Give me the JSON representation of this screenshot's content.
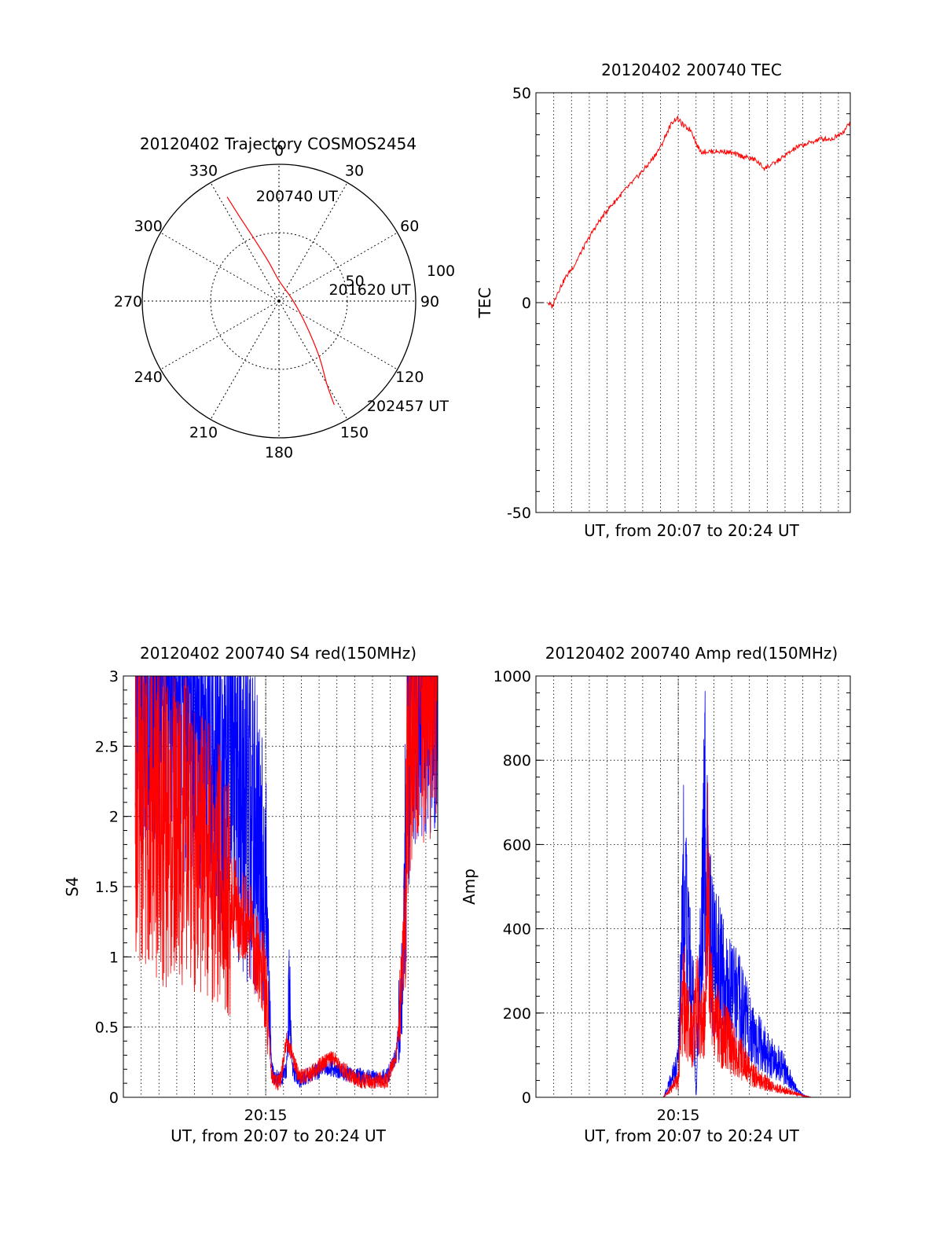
{
  "colors": {
    "red": "#ff0000",
    "blue": "#0000ff",
    "axis": "#000000",
    "grid": "#000000"
  },
  "chart_data": [
    {
      "id": "polar",
      "type": "polar",
      "title": "20120402 Trajectory COSMOS2454",
      "azimuth_labels": [
        "0",
        "30",
        "60",
        "90",
        "120",
        "150",
        "180",
        "210",
        "240",
        "270",
        "300",
        "330"
      ],
      "elevation_rings": [
        {
          "r": 50,
          "label": "50"
        },
        {
          "r": 100,
          "label": "100"
        }
      ],
      "rmax": 100,
      "trajectory": [
        {
          "az": 333.5,
          "r": 85
        },
        {
          "az": 335,
          "r": 68
        },
        {
          "az": 338,
          "r": 50
        },
        {
          "az": 345,
          "r": 30
        },
        {
          "az": 360,
          "r": 15
        },
        {
          "az": 85,
          "r": 10
        },
        {
          "az": 130,
          "r": 25
        },
        {
          "az": 144,
          "r": 50
        },
        {
          "az": 150,
          "r": 70
        },
        {
          "az": 152,
          "r": 86
        }
      ],
      "annotations": [
        {
          "text": "200740 UT",
          "az": 351,
          "r": 78
        },
        {
          "text": "201620 UT",
          "az": 78,
          "r": 42
        },
        {
          "text": "202457 UT",
          "az": 138,
          "r": 103
        }
      ]
    },
    {
      "id": "tec",
      "type": "line",
      "title": "20120402 200740 TEC",
      "xlabel": "UT, from 20:07 to 20:24 UT",
      "ylabel": "TEC",
      "xlim": [
        "20:07:00",
        "20:24:40"
      ],
      "ylim": [
        -50,
        50
      ],
      "yticks": [
        "-50",
        "0",
        "50"
      ],
      "xticks": [],
      "grid": true,
      "series": [
        {
          "color": "red",
          "x": [
            "20:07:40",
            "20:07:55",
            "20:08:10",
            "20:08:40",
            "20:09:10",
            "20:09:40",
            "20:10:20",
            "20:11:00",
            "20:11:50",
            "20:12:30",
            "20:13:20",
            "20:14:00",
            "20:14:25",
            "20:14:40",
            "20:14:55",
            "20:15:20",
            "20:15:45",
            "20:16:00",
            "20:16:15",
            "20:16:30",
            "20:17:00",
            "20:17:40",
            "20:18:30",
            "20:19:20",
            "20:19:50",
            "20:20:20",
            "20:21:00",
            "20:21:40",
            "20:22:20",
            "20:23:00",
            "20:23:40",
            "20:24:20",
            "20:24:40"
          ],
          "y": [
            0,
            -1,
            2,
            6,
            9,
            13,
            18,
            22,
            26,
            29,
            33,
            37,
            41,
            43,
            44,
            42,
            41,
            38,
            36,
            36,
            36,
            36,
            35,
            34,
            32,
            33,
            35,
            37,
            38,
            39,
            39,
            41,
            43
          ]
        }
      ]
    },
    {
      "id": "s4",
      "type": "line",
      "title": "20120402 200740 S4 red(150MHz)",
      "xlabel": "UT, from 20:07 to 20:24 UT",
      "ylabel": "S4",
      "xlim": [
        "20:07:00",
        "20:24:40"
      ],
      "ylim": [
        0,
        3
      ],
      "yticks": [
        "0",
        "0.5",
        "1",
        "1.5",
        "2",
        "2.5",
        "3"
      ],
      "xticks": [
        "20:15"
      ],
      "grid": true,
      "series": [
        {
          "color": "blue",
          "x": [
            "20:07:40",
            "20:08:20",
            "20:09:00",
            "20:09:40",
            "20:10:20",
            "20:11:00",
            "20:11:40",
            "20:12:20",
            "20:13:00",
            "20:13:40",
            "20:14:20",
            "20:15:00",
            "20:15:20",
            "20:15:30",
            "20:15:50",
            "20:16:10",
            "20:16:20",
            "20:16:30",
            "20:16:50",
            "20:17:20",
            "20:17:50",
            "20:18:20",
            "20:18:50",
            "20:19:20",
            "20:19:50",
            "20:20:20",
            "20:20:50",
            "20:21:20",
            "20:21:50",
            "20:22:20",
            "20:22:40",
            "20:22:50",
            "20:23:00",
            "20:23:20",
            "20:23:40",
            "20:24:00",
            "20:24:20",
            "20:24:40"
          ],
          "y": [
            3,
            3,
            3,
            2.9,
            2.8,
            2.7,
            2.6,
            2.4,
            2.3,
            2.1,
            1.9,
            1.6,
            0.2,
            0.15,
            0.12,
            0.2,
            0.8,
            0.2,
            0.12,
            0.15,
            0.18,
            0.22,
            0.2,
            0.18,
            0.15,
            0.15,
            0.14,
            0.13,
            0.15,
            0.3,
            0.8,
            1.6,
            2.5,
            3,
            3,
            3,
            3,
            3
          ]
        },
        {
          "color": "red",
          "x": [
            "20:07:40",
            "20:08:20",
            "20:09:00",
            "20:09:40",
            "20:10:20",
            "20:11:00",
            "20:11:40",
            "20:12:20",
            "20:13:00",
            "20:13:40",
            "20:14:20",
            "20:15:00",
            "20:15:20",
            "20:15:30",
            "20:15:50",
            "20:16:10",
            "20:16:30",
            "20:16:50",
            "20:17:20",
            "20:17:50",
            "20:18:20",
            "20:18:50",
            "20:19:20",
            "20:19:50",
            "20:20:20",
            "20:20:50",
            "20:21:20",
            "20:21:50",
            "20:22:20",
            "20:22:40",
            "20:22:50",
            "20:23:00",
            "20:23:20",
            "20:23:40",
            "20:24:00",
            "20:24:20",
            "20:24:40"
          ],
          "y": [
            2.2,
            2.1,
            2.0,
            1.9,
            1.9,
            1.8,
            1.7,
            1.6,
            1.4,
            1.3,
            1.1,
            0.8,
            0.15,
            0.1,
            0.12,
            0.4,
            0.3,
            0.15,
            0.15,
            0.2,
            0.25,
            0.28,
            0.2,
            0.15,
            0.12,
            0.12,
            0.12,
            0.12,
            0.3,
            0.8,
            1.4,
            2.3,
            3,
            3,
            3,
            3,
            3
          ]
        }
      ]
    },
    {
      "id": "amp",
      "type": "line",
      "title": "20120402 200740 Amp red(150MHz)",
      "xlabel": "UT, from 20:07 to 20:24 UT",
      "ylabel": "Amp",
      "xlim": [
        "20:07:00",
        "20:24:40"
      ],
      "ylim": [
        0,
        1000
      ],
      "yticks": [
        "0",
        "200",
        "400",
        "600",
        "800",
        "1000"
      ],
      "xticks": [
        "20:15"
      ],
      "grid": true,
      "series": [
        {
          "color": "blue",
          "x": [
            "20:07:40",
            "20:14:10",
            "20:15:00",
            "20:15:10",
            "20:15:20",
            "20:15:30",
            "20:15:40",
            "20:15:50",
            "20:16:00",
            "20:16:10",
            "20:16:20",
            "20:16:30",
            "20:16:40",
            "20:16:50",
            "20:17:00",
            "20:17:20",
            "20:17:40",
            "20:18:00",
            "20:18:20",
            "20:18:40",
            "20:19:00",
            "20:19:20",
            "20:19:40",
            "20:20:00",
            "20:20:20",
            "20:20:40",
            "20:21:00",
            "20:21:20",
            "20:21:40",
            "20:22:00",
            "20:22:30",
            "20:24:40"
          ],
          "y": [
            0,
            0,
            100,
            400,
            650,
            450,
            380,
            300,
            0,
            300,
            500,
            800,
            600,
            450,
            400,
            380,
            320,
            300,
            280,
            250,
            200,
            180,
            150,
            130,
            110,
            100,
            80,
            50,
            20,
            5,
            0,
            0
          ]
        },
        {
          "color": "red",
          "x": [
            "20:07:40",
            "20:14:10",
            "20:15:00",
            "20:15:10",
            "20:15:20",
            "20:15:30",
            "20:15:40",
            "20:15:50",
            "20:16:00",
            "20:16:10",
            "20:16:20",
            "20:16:30",
            "20:16:40",
            "20:16:50",
            "20:17:00",
            "20:17:20",
            "20:17:40",
            "20:18:00",
            "20:18:20",
            "20:18:40",
            "20:19:00",
            "20:19:20",
            "20:19:40",
            "20:20:00",
            "20:20:20",
            "20:20:40",
            "20:21:00",
            "20:21:20",
            "20:21:40",
            "20:22:00",
            "20:22:30",
            "20:24:40"
          ],
          "y": [
            0,
            0,
            50,
            250,
            300,
            250,
            180,
            200,
            280,
            260,
            200,
            250,
            650,
            300,
            250,
            200,
            180,
            150,
            120,
            110,
            80,
            60,
            50,
            40,
            30,
            25,
            20,
            15,
            10,
            5,
            0,
            0
          ]
        }
      ]
    }
  ]
}
